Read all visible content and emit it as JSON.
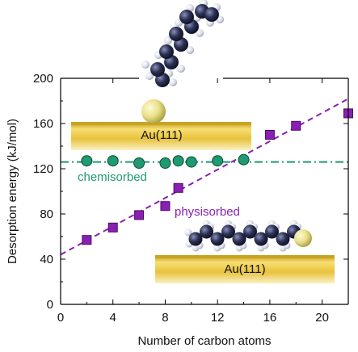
{
  "chart_data": {
    "type": "scatter",
    "xlabel": "Number of carbon atoms",
    "ylabel": "Desorption energy (kJ/mol)",
    "xlim": [
      0,
      22
    ],
    "ylim": [
      0,
      200
    ],
    "xticks": [
      0,
      4,
      8,
      12,
      16,
      20
    ],
    "yticks": [
      0,
      40,
      80,
      120,
      160,
      200
    ],
    "grid": false,
    "series": [
      {
        "name": "chemisorbed",
        "marker": "circle",
        "color": "#1f9a72",
        "x": [
          2,
          4,
          6,
          8,
          9,
          10,
          12,
          14
        ],
        "y": [
          127,
          127,
          125,
          125,
          127,
          126,
          127,
          128
        ],
        "fit": {
          "style": "dash-dot",
          "slope": 0,
          "intercept": 126
        }
      },
      {
        "name": "physisorbed",
        "marker": "square",
        "color": "#8a1fb3",
        "x": [
          2,
          4,
          6,
          8,
          9,
          16,
          18,
          22
        ],
        "y": [
          57,
          68,
          79,
          87,
          103,
          150,
          158,
          169
        ],
        "fit": {
          "style": "dashed",
          "slope": 6.27,
          "intercept": 44
        }
      }
    ],
    "annotations": [
      {
        "text": "Au(111)",
        "where": "upper-left surface slab"
      },
      {
        "text": "Au(111)",
        "where": "lower-right surface slab"
      }
    ]
  },
  "colors": {
    "chemisorbed": "#1f9a72",
    "physisorbed": "#8a1fb3",
    "gold_light": "#f2d65e",
    "gold_dark": "#c8a018"
  }
}
